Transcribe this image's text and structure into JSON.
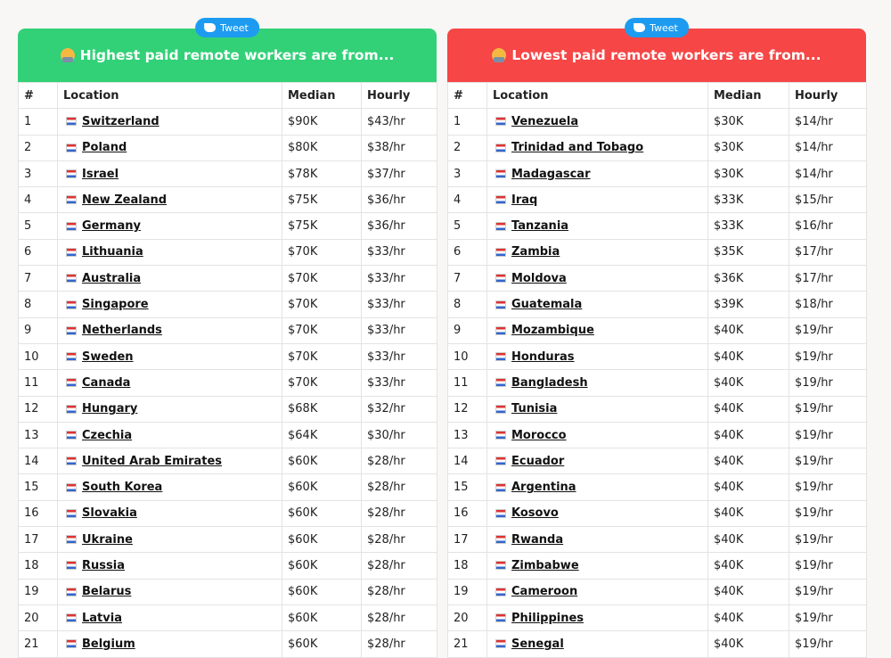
{
  "panels": [
    {
      "tweet": "Tweet",
      "title": "Highest paid remote workers are from...",
      "columns": [
        "#",
        "Location",
        "Median",
        "Hourly"
      ],
      "rows": [
        [
          1,
          "Switzerland",
          "$90K",
          "$43/hr"
        ],
        [
          2,
          "Poland",
          "$80K",
          "$38/hr"
        ],
        [
          3,
          "Israel",
          "$78K",
          "$37/hr"
        ],
        [
          4,
          "New Zealand",
          "$75K",
          "$36/hr"
        ],
        [
          5,
          "Germany",
          "$75K",
          "$36/hr"
        ],
        [
          6,
          "Lithuania",
          "$70K",
          "$33/hr"
        ],
        [
          7,
          "Australia",
          "$70K",
          "$33/hr"
        ],
        [
          8,
          "Singapore",
          "$70K",
          "$33/hr"
        ],
        [
          9,
          "Netherlands",
          "$70K",
          "$33/hr"
        ],
        [
          10,
          "Sweden",
          "$70K",
          "$33/hr"
        ],
        [
          11,
          "Canada",
          "$70K",
          "$33/hr"
        ],
        [
          12,
          "Hungary",
          "$68K",
          "$32/hr"
        ],
        [
          13,
          "Czechia",
          "$64K",
          "$30/hr"
        ],
        [
          14,
          "United Arab Emirates",
          "$60K",
          "$28/hr"
        ],
        [
          15,
          "South Korea",
          "$60K",
          "$28/hr"
        ],
        [
          16,
          "Slovakia",
          "$60K",
          "$28/hr"
        ],
        [
          17,
          "Ukraine",
          "$60K",
          "$28/hr"
        ],
        [
          18,
          "Russia",
          "$60K",
          "$28/hr"
        ],
        [
          19,
          "Belarus",
          "$60K",
          "$28/hr"
        ],
        [
          20,
          "Latvia",
          "$60K",
          "$28/hr"
        ],
        [
          21,
          "Belgium",
          "$60K",
          "$28/hr"
        ]
      ]
    },
    {
      "tweet": "Tweet",
      "title": "Lowest paid remote workers are from...",
      "columns": [
        "#",
        "Location",
        "Median",
        "Hourly"
      ],
      "rows": [
        [
          1,
          "Venezuela",
          "$30K",
          "$14/hr"
        ],
        [
          2,
          "Trinidad and Tobago",
          "$30K",
          "$14/hr"
        ],
        [
          3,
          "Madagascar",
          "$30K",
          "$14/hr"
        ],
        [
          4,
          "Iraq",
          "$33K",
          "$15/hr"
        ],
        [
          5,
          "Tanzania",
          "$33K",
          "$16/hr"
        ],
        [
          6,
          "Zambia",
          "$35K",
          "$17/hr"
        ],
        [
          7,
          "Moldova",
          "$36K",
          "$17/hr"
        ],
        [
          8,
          "Guatemala",
          "$39K",
          "$18/hr"
        ],
        [
          9,
          "Mozambique",
          "$40K",
          "$19/hr"
        ],
        [
          10,
          "Honduras",
          "$40K",
          "$19/hr"
        ],
        [
          11,
          "Bangladesh",
          "$40K",
          "$19/hr"
        ],
        [
          12,
          "Tunisia",
          "$40K",
          "$19/hr"
        ],
        [
          13,
          "Morocco",
          "$40K",
          "$19/hr"
        ],
        [
          14,
          "Ecuador",
          "$40K",
          "$19/hr"
        ],
        [
          15,
          "Argentina",
          "$40K",
          "$19/hr"
        ],
        [
          16,
          "Kosovo",
          "$40K",
          "$19/hr"
        ],
        [
          17,
          "Rwanda",
          "$40K",
          "$19/hr"
        ],
        [
          18,
          "Zimbabwe",
          "$40K",
          "$19/hr"
        ],
        [
          19,
          "Cameroon",
          "$40K",
          "$19/hr"
        ],
        [
          20,
          "Philippines",
          "$40K",
          "$19/hr"
        ],
        [
          21,
          "Senegal",
          "$40K",
          "$19/hr"
        ]
      ]
    }
  ]
}
